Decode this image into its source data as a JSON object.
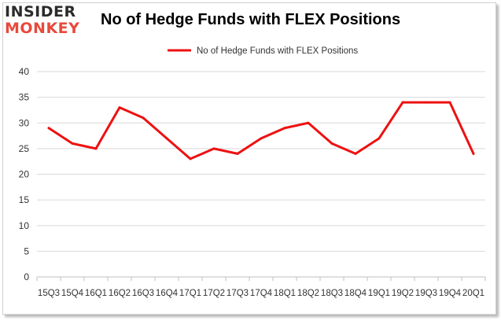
{
  "logo": {
    "top": "INSIDER",
    "bottom": "MONKEY"
  },
  "title": "No of Hedge Funds with FLEX Positions",
  "colors": {
    "series": "#ee1111",
    "grid": "#d9d9d9",
    "axis": "#bfbfbf",
    "text": "#333333",
    "logo_accent": "#e8493b"
  },
  "chart_data": {
    "type": "line",
    "title": "No of Hedge Funds with FLEX Positions",
    "xlabel": "",
    "ylabel": "",
    "ylim": [
      0,
      40
    ],
    "yticks": [
      0,
      5,
      10,
      15,
      20,
      25,
      30,
      35,
      40
    ],
    "grid": true,
    "legend_position": "top-center",
    "categories": [
      "15Q3",
      "15Q4",
      "16Q1",
      "16Q2",
      "16Q3",
      "16Q4",
      "17Q1",
      "17Q2",
      "17Q3",
      "17Q4",
      "18Q1",
      "18Q2",
      "18Q3",
      "18Q4",
      "19Q1",
      "19Q2",
      "19Q3",
      "19Q4",
      "20Q1"
    ],
    "series": [
      {
        "name": "No of Hedge Funds with FLEX Positions",
        "values": [
          29,
          26,
          25,
          33,
          31,
          27,
          23,
          25,
          24,
          27,
          29,
          30,
          26,
          24,
          27,
          34,
          34,
          34,
          24
        ]
      }
    ]
  }
}
